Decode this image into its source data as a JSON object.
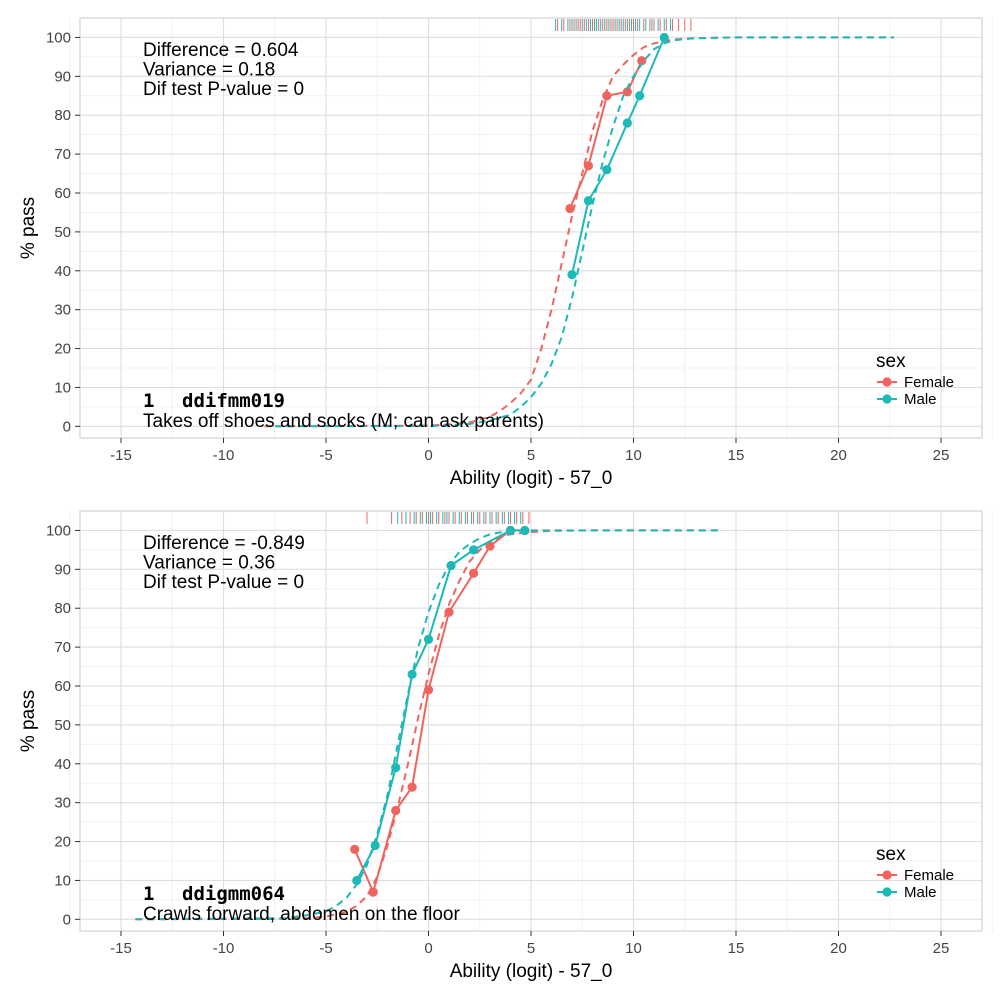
{
  "colors": {
    "female": "#F0645F",
    "male": "#1DB9B6",
    "grid_major": "#DEDEDE",
    "grid_minor": "#EFEFEF",
    "panel_border": "#C8C8C8",
    "text": "#000000",
    "tick_text": "#444444"
  },
  "chart_data": [
    {
      "type": "line",
      "xlabel": "Ability (logit) - 57_0",
      "ylabel": "% pass",
      "xlim": [
        -17,
        27
      ],
      "ylim": [
        -3,
        105
      ],
      "x_ticks": [
        -15,
        -10,
        -5,
        0,
        5,
        10,
        15,
        20,
        25
      ],
      "x_tick_labels": [
        "-15",
        "-10",
        "-5",
        "0",
        "5",
        "10",
        "15",
        "20",
        "25"
      ],
      "y_ticks": [
        0,
        10,
        20,
        30,
        40,
        50,
        60,
        70,
        80,
        90,
        100
      ],
      "y_tick_labels": [
        "0",
        "10",
        "20",
        "30",
        "40",
        "50",
        "60",
        "70",
        "80",
        "90",
        "100"
      ],
      "grid": true,
      "stats": [
        "Difference = 0.604",
        "Variance = 0.18",
        "Dif test P-value = 0"
      ],
      "item_number": "1",
      "item_code": "ddifmm019",
      "item_label": "Takes off shoes and socks (M; can ask parents)",
      "legend": {
        "title": "sex",
        "position": "right",
        "entries": [
          "Female",
          "Male"
        ]
      },
      "series": [
        {
          "name": "Female",
          "observed": {
            "x": [
              6.9,
              7.8,
              8.7,
              9.7,
              10.4
            ],
            "y": [
              56,
              67,
              85,
              86,
              94
            ]
          },
          "fitted": {
            "x": [
              -8,
              0,
              1,
              2,
              3,
              3.5,
              4,
              4.5,
              5,
              5.5,
              6,
              6.5,
              7,
              7.5,
              8,
              8.5,
              9,
              9.5,
              10,
              10.5,
              11,
              12,
              13,
              15,
              18,
              22.7
            ],
            "y": [
              0,
              0.2,
              0.5,
              1,
              2.5,
              4,
              6,
              8.5,
              12,
              20,
              30,
              42,
              54,
              65,
              76,
              84,
              90,
              93,
              95.5,
              97.5,
              98.5,
              99.5,
              99.8,
              100,
              100,
              100
            ]
          },
          "rug": [
            6.3,
            6.6,
            6.9,
            7.1,
            7.3,
            7.4,
            7.6,
            7.8,
            8.0,
            8.1,
            8.3,
            8.5,
            8.7,
            8.9,
            9.0,
            9.2,
            9.4,
            9.6,
            9.8,
            10.0,
            10.2,
            10.5,
            10.8,
            11.0,
            11.3,
            11.6,
            11.9,
            12.2,
            12.5,
            12.8
          ]
        },
        {
          "name": "Male",
          "observed": {
            "x": [
              7.0,
              7.8,
              8.7,
              9.7,
              10.3,
              11.5
            ],
            "y": [
              39,
              58,
              66,
              78,
              85,
              100
            ]
          },
          "fitted": {
            "x": [
              -7.5,
              0,
              1,
              2,
              3,
              4,
              4.5,
              5,
              5.5,
              6,
              6.5,
              7,
              7.5,
              8,
              8.5,
              9,
              9.5,
              10,
              10.5,
              11,
              11.5,
              12,
              13,
              15,
              18,
              22.7
            ],
            "y": [
              0,
              0.1,
              0.3,
              0.6,
              1.5,
              3,
              5,
              7.5,
              11,
              16,
              23,
              33,
              45,
              57,
              68,
              77,
              85,
              90,
              94,
              97,
              98.5,
              99.3,
              99.8,
              100,
              100,
              100
            ]
          },
          "rug": [
            6.2,
            6.5,
            6.8,
            7.0,
            7.2,
            7.5,
            7.7,
            7.9,
            8.1,
            8.2,
            8.4,
            8.6,
            8.8,
            9.1,
            9.3,
            9.5,
            9.7,
            9.9,
            10.1,
            10.3,
            10.6,
            10.9,
            11.2,
            11.5,
            11.8
          ]
        }
      ]
    },
    {
      "type": "line",
      "xlabel": "Ability (logit) - 57_0",
      "ylabel": "% pass",
      "xlim": [
        -17,
        27
      ],
      "ylim": [
        -3,
        105
      ],
      "x_ticks": [
        -15,
        -10,
        -5,
        0,
        5,
        10,
        15,
        20,
        25
      ],
      "x_tick_labels": [
        "-15",
        "-10",
        "-5",
        "0",
        "5",
        "10",
        "15",
        "20",
        "25"
      ],
      "y_ticks": [
        0,
        10,
        20,
        30,
        40,
        50,
        60,
        70,
        80,
        90,
        100
      ],
      "y_tick_labels": [
        "0",
        "10",
        "20",
        "30",
        "40",
        "50",
        "60",
        "70",
        "80",
        "90",
        "100"
      ],
      "grid": true,
      "stats": [
        "Difference = -0.849",
        "Variance = 0.36",
        "Dif test P-value = 0"
      ],
      "item_number": "1",
      "item_code": "ddigmm064",
      "item_label": "Crawls forward, abdomen on the floor",
      "legend": {
        "title": "sex",
        "position": "right",
        "entries": [
          "Female",
          "Male"
        ]
      },
      "series": [
        {
          "name": "Female",
          "observed": {
            "x": [
              -3.6,
              -2.7,
              -1.6,
              -0.8,
              0,
              1.0,
              2.2,
              3.0,
              4.0,
              4.7
            ],
            "y": [
              18,
              7,
              28,
              34,
              59,
              79,
              89,
              96,
              100,
              100
            ]
          },
          "fitted": {
            "x": [
              -14.3,
              -7,
              -6,
              -5,
              -4,
              -3.5,
              -3,
              -2.5,
              -2,
              -1.5,
              -1,
              -0.5,
              0,
              0.5,
              1,
              1.5,
              2,
              2.5,
              3,
              3.5,
              4,
              5,
              6,
              8,
              11,
              14.3
            ],
            "y": [
              0,
              0.1,
              0.3,
              0.7,
              2,
              3.5,
              6,
              11,
              19,
              29,
              40,
              52,
              63,
              73,
              81,
              87,
              92,
              95,
              97,
              98.3,
              99,
              99.6,
              99.9,
              100,
              100,
              100
            ]
          },
          "rug": [
            -3.0,
            -1.8,
            -1.3,
            -0.9,
            -0.6,
            -0.3,
            0.0,
            0.2,
            0.5,
            0.8,
            1.0,
            1.3,
            1.6,
            1.9,
            2.2,
            2.5,
            2.8,
            3.1,
            3.4,
            3.7,
            4.0,
            4.3,
            4.6,
            4.9
          ]
        },
        {
          "name": "Male",
          "observed": {
            "x": [
              -3.5,
              -2.6,
              -1.6,
              -0.8,
              0,
              1.1,
              2.2,
              4.0,
              4.7
            ],
            "y": [
              10,
              19,
              39,
              63,
              72,
              91,
              95,
              100,
              100
            ]
          },
          "fitted": {
            "x": [
              -14.3,
              -7,
              -6,
              -5,
              -4.5,
              -4,
              -3.5,
              -3,
              -2.5,
              -2,
              -1.5,
              -1,
              -0.5,
              0,
              0.5,
              1,
              1.5,
              2,
              2.5,
              3,
              3.5,
              4,
              5,
              6,
              8,
              11,
              14.3
            ],
            "y": [
              0,
              0.3,
              1,
              2,
              3.5,
              5.5,
              9,
              14,
              22,
              32,
              45,
              58,
              70,
              79,
              86,
              91,
              94.5,
              96.5,
              98,
              99,
              99.5,
              99.8,
              100,
              100,
              100,
              100,
              100
            ]
          },
          "rug": [
            -1.5,
            -1.1,
            -0.7,
            -0.4,
            -0.1,
            0.1,
            0.4,
            0.7,
            0.9,
            1.2,
            1.5,
            1.8,
            2.1,
            2.4,
            2.7,
            3.0,
            3.3,
            3.6,
            3.9,
            4.2,
            4.5
          ]
        }
      ]
    }
  ]
}
